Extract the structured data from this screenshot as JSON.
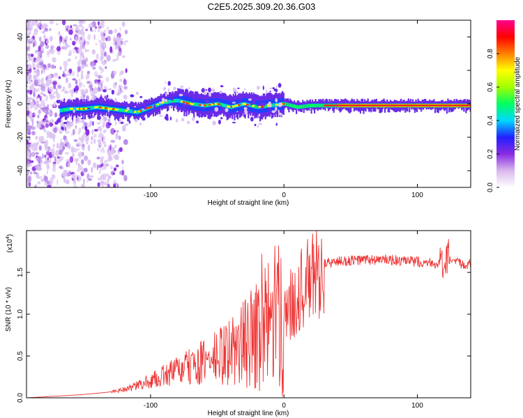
{
  "title": "C2E5.2025.309.20.36.G03",
  "chart_data": [
    {
      "type": "heatmap",
      "xlabel": "Height of straight line (km)",
      "ylabel": "Frequency (Hz)",
      "xlim": [
        -193,
        140
      ],
      "ylim": [
        -50,
        50
      ],
      "x_ticks": [
        -100,
        0,
        100
      ],
      "y_ticks": [
        -40,
        -20,
        0,
        20,
        40
      ],
      "ridge": {
        "x": [
          -168,
          -160,
          -150,
          -140,
          -130,
          -120,
          -110,
          -100,
          -90,
          -80,
          -70,
          -60,
          -50,
          -40,
          -30,
          -20,
          -10,
          0,
          10,
          20,
          40,
          60,
          80,
          100,
          120,
          140
        ],
        "freq": [
          -4,
          -3,
          -3,
          -2,
          -3,
          -4,
          -5,
          -2,
          1,
          2,
          0,
          -1,
          0,
          -2,
          0,
          -2,
          -1,
          0,
          -2,
          -1,
          -1,
          -1,
          -1,
          -1,
          -1,
          -1
        ]
      },
      "colorbar": {
        "label": "Normalized spectral amplitude",
        "range": [
          0.0,
          1.0
        ],
        "ticks": [
          "0.0",
          "0.2",
          "0.4",
          "0.6",
          "0.8"
        ],
        "colors": [
          "#ffffff",
          "#d9b8ee",
          "#8a2be2",
          "#2020ff",
          "#00d8ff",
          "#00ff60",
          "#a0ff00",
          "#ffff00",
          "#ff8000",
          "#ff0000",
          "#ff0090"
        ]
      }
    },
    {
      "type": "line",
      "xlabel": "Height of straight line (km)",
      "ylabel": "SNR (10 * v/v)",
      "scale_label": "(x10",
      "scale_exponent": "4",
      "xlim": [
        -193,
        140
      ],
      "ylim": [
        0,
        2.0
      ],
      "x_ticks": [
        -100,
        0,
        100
      ],
      "y_ticks": [
        0.0,
        0.5,
        1.0,
        1.5
      ],
      "color": "#ee3333",
      "series": [
        {
          "name": "SNR",
          "x": [
            -193,
            -170,
            -150,
            -130,
            -115,
            -100,
            -85,
            -70,
            -55,
            -40,
            -25,
            -15,
            -10,
            -5,
            0,
            5,
            10,
            15,
            20,
            25,
            30,
            40,
            50,
            60,
            70,
            80,
            90,
            100,
            110,
            118,
            120,
            122,
            125,
            130,
            140
          ],
          "y": [
            0.0,
            0.02,
            0.04,
            0.07,
            0.12,
            0.2,
            0.3,
            0.37,
            0.45,
            0.55,
            0.7,
            0.8,
            0.9,
            0.95,
            1.0,
            1.1,
            1.25,
            1.32,
            1.4,
            1.5,
            1.6,
            1.63,
            1.64,
            1.65,
            1.65,
            1.65,
            1.63,
            1.63,
            1.62,
            1.6,
            1.42,
            1.66,
            1.62,
            1.61,
            1.6
          ]
        }
      ]
    }
  ]
}
